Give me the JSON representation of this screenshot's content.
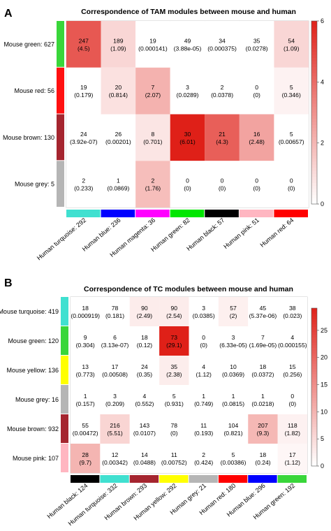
{
  "chart_data": [
    {
      "panel_label": "A",
      "type": "heatmap",
      "title": "Correspondence of TAM modules between mouse and human",
      "rows": [
        "Mouse green: 627",
        "Mouse red: 56",
        "Mouse brown: 130",
        "Mouse grey: 5"
      ],
      "row_colors": [
        "#39d63a",
        "#ff1010",
        "#a5252f",
        "#b5b5b5"
      ],
      "cols": [
        "Human turquoise: 292",
        "Human blue: 236",
        "Human magenta: 36",
        "Human green: 82",
        "Human black: 57",
        "Human pink: 51",
        "Human red: 64"
      ],
      "col_colors": [
        "#40e0d0",
        "#0000ff",
        "#ff00ff",
        "#00e600",
        "#000000",
        "#ffb6c1",
        "#ff0000"
      ],
      "counts": [
        [
          "247",
          "189",
          "19",
          "49",
          "34",
          "35",
          "54"
        ],
        [
          "19",
          "20",
          "7",
          "3",
          "2",
          "0",
          "5"
        ],
        [
          "24",
          "26",
          "8",
          "30",
          "21",
          "16",
          "5"
        ],
        [
          "2",
          "1",
          "2",
          "0",
          "0",
          "0",
          "0"
        ]
      ],
      "values": [
        [
          "(4.5)",
          "(1.09)",
          "(0.000141)",
          "(3.88e-05)",
          "(0.000375)",
          "(0.0278)",
          "(1.09)"
        ],
        [
          "(0.179)",
          "(0.814)",
          "(2.07)",
          "(0.0289)",
          "(0.0378)",
          "(0)",
          "(0.346)"
        ],
        [
          "(3.92e-07)",
          "(0.00201)",
          "(0.701)",
          "(6.01)",
          "(4.3)",
          "(2.48)",
          "(0.00657)"
        ],
        [
          "(0.233)",
          "(0.0869)",
          "(1.76)",
          "(0)",
          "(0)",
          "(0)",
          "(0)"
        ]
      ],
      "fill": [
        [
          4.5,
          1.09,
          0,
          0,
          0,
          0,
          1.09
        ],
        [
          0,
          0.814,
          2.07,
          0,
          0,
          0,
          0.346
        ],
        [
          0,
          0,
          0.701,
          6.01,
          4.3,
          2.48,
          0
        ],
        [
          0,
          0,
          1.76,
          0,
          0,
          0,
          0
        ]
      ],
      "scale": {
        "min": 0,
        "max": 6,
        "ticks": [
          0,
          2,
          4,
          6
        ]
      }
    },
    {
      "panel_label": "B",
      "type": "heatmap",
      "title": "Correspondence of TC modules between mouse and human",
      "rows": [
        "Mouse turquoise: 419",
        "Mouse green: 120",
        "Mouse yellow: 136",
        "Mouse grey: 16",
        "Mouse brown: 932",
        "Mouse pink: 107"
      ],
      "row_colors": [
        "#40e0d0",
        "#39d63a",
        "#ffff00",
        "#b5b5b5",
        "#a5252f",
        "#ffb6c1"
      ],
      "cols": [
        "Human black: 124",
        "Human turquoise: 332",
        "Human brown: 293",
        "Human yellow: 292",
        "Human grey: 21",
        "Human red: 180",
        "Human blue: 296",
        "Human green: 192"
      ],
      "col_colors": [
        "#000000",
        "#40e0d0",
        "#a5252f",
        "#ffff00",
        "#b5b5b5",
        "#ff0000",
        "#0000ff",
        "#39d63a"
      ],
      "counts": [
        [
          "18",
          "78",
          "90",
          "90",
          "3",
          "57",
          "45",
          "38"
        ],
        [
          "9",
          "6",
          "18",
          "73",
          "0",
          "3",
          "7",
          "4"
        ],
        [
          "13",
          "17",
          "24",
          "35",
          "4",
          "10",
          "18",
          "15"
        ],
        [
          "1",
          "3",
          "4",
          "5",
          "1",
          "1",
          "1",
          "0"
        ],
        [
          "55",
          "216",
          "143",
          "78",
          "11",
          "104",
          "207",
          "118"
        ],
        [
          "28",
          "12",
          "14",
          "11",
          "2",
          "5",
          "18",
          "17"
        ]
      ],
      "values": [
        [
          "(0.000919)",
          "(0.181)",
          "(2.49)",
          "(2.54)",
          "(0.0385)",
          "(2)",
          "(5.37e-06)",
          "(0.023)"
        ],
        [
          "(0.304)",
          "(3.13e-07)",
          "(0.12)",
          "(29.1)",
          "(0)",
          "(6.33e-05)",
          "(1.69e-05)",
          "(0.000155)"
        ],
        [
          "(0.773)",
          "(0.00508)",
          "(0.35)",
          "(2.38)",
          "(1.12)",
          "(0.0369)",
          "(0.0372)",
          "(0.256)"
        ],
        [
          "(0.157)",
          "(0.209)",
          "(0.552)",
          "(0.931)",
          "(0.749)",
          "(0.0815)",
          "(0.0218)",
          "(0)"
        ],
        [
          "(0.00472)",
          "(5.51)",
          "(0.0107)",
          "(0)",
          "(0.193)",
          "(0.821)",
          "(9.3)",
          "(1.82)"
        ],
        [
          "(9.7)",
          "(0.00342)",
          "(0.0488)",
          "(0.00752)",
          "(0.424)",
          "(0.00386)",
          "(0.24)",
          "(1.12)"
        ]
      ],
      "fill": [
        [
          0,
          0,
          2.49,
          2.54,
          0,
          2,
          0,
          0
        ],
        [
          0,
          0,
          0,
          29.1,
          0,
          0,
          0,
          0
        ],
        [
          0,
          0,
          0,
          2.38,
          0,
          0,
          0,
          0
        ],
        [
          0,
          0,
          0,
          0,
          0,
          0,
          0,
          0
        ],
        [
          0,
          5.51,
          0,
          0,
          0,
          0,
          9.3,
          1.82
        ],
        [
          9.7,
          0,
          0,
          0,
          0,
          0,
          0,
          1.12
        ]
      ],
      "scale": {
        "min": 0,
        "max": 29.1,
        "ticks": [
          0,
          5,
          10,
          15,
          20,
          25
        ]
      }
    }
  ]
}
